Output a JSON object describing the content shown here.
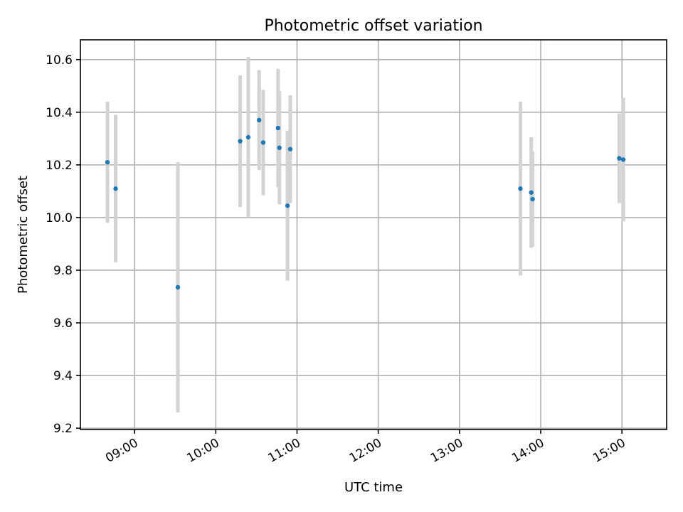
{
  "chart_data": {
    "type": "scatter",
    "title": "Photometric offset variation",
    "xlabel": "UTC time",
    "ylabel": "Photometric offset",
    "xlim": [
      "08:20",
      "15:33"
    ],
    "ylim": [
      9.195,
      10.675
    ],
    "x_ticks": [
      "09:00",
      "10:00",
      "11:00",
      "12:00",
      "13:00",
      "14:00",
      "15:00"
    ],
    "y_ticks": [
      "9.2",
      "9.4",
      "9.6",
      "9.8",
      "10.0",
      "10.2",
      "10.4",
      "10.6"
    ],
    "grid": true,
    "marker_color": "#1f77b4",
    "errorbar_color": "#d3d3d3",
    "points": [
      {
        "x": "08:40",
        "y": 10.21,
        "err": 0.23
      },
      {
        "x": "08:46",
        "y": 10.11,
        "err": 0.28
      },
      {
        "x": "09:32",
        "y": 9.735,
        "err": 0.475
      },
      {
        "x": "10:18",
        "y": 10.29,
        "err": 0.25
      },
      {
        "x": "10:24",
        "y": 10.305,
        "err": 0.305
      },
      {
        "x": "10:32",
        "y": 10.37,
        "err": 0.19
      },
      {
        "x": "10:35",
        "y": 10.285,
        "err": 0.2
      },
      {
        "x": "10:46",
        "y": 10.34,
        "err": 0.225
      },
      {
        "x": "10:47",
        "y": 10.265,
        "err": 0.215
      },
      {
        "x": "10:53",
        "y": 10.045,
        "err": 0.285
      },
      {
        "x": "10:55",
        "y": 10.26,
        "err": 0.205
      },
      {
        "x": "13:45",
        "y": 10.11,
        "err": 0.33
      },
      {
        "x": "13:53",
        "y": 10.095,
        "err": 0.21
      },
      {
        "x": "13:54",
        "y": 10.07,
        "err": 0.18
      },
      {
        "x": "14:58",
        "y": 10.225,
        "err": 0.17
      },
      {
        "x": "15:01",
        "y": 10.22,
        "err": 0.235
      }
    ]
  }
}
